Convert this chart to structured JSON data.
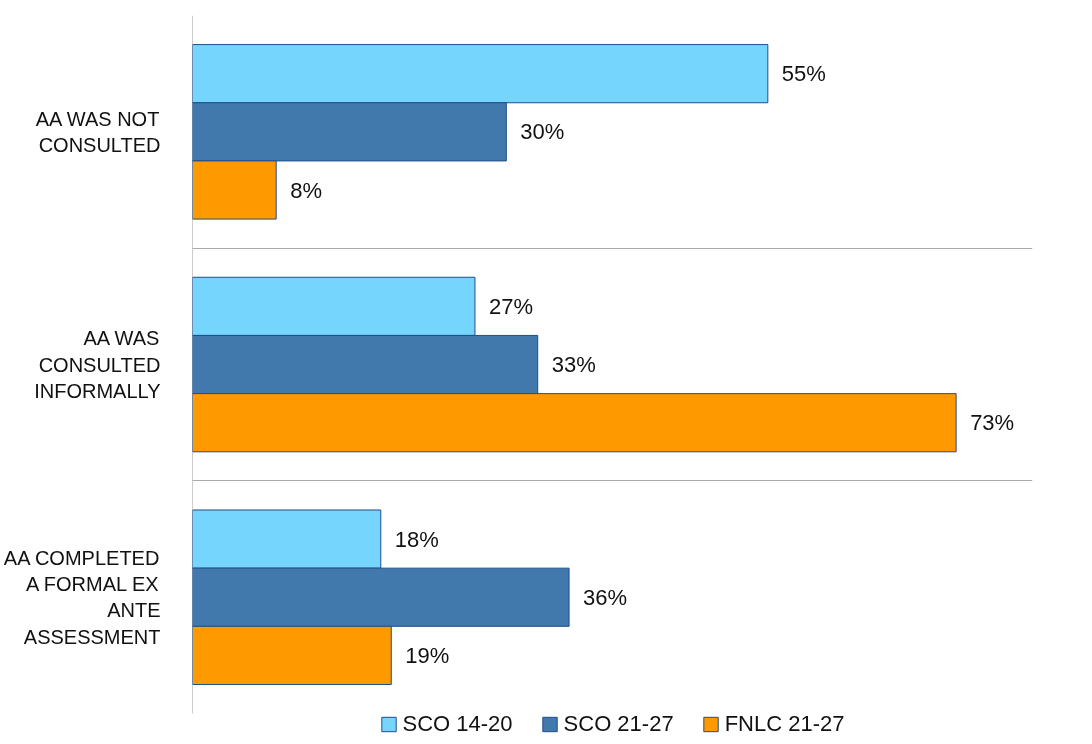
{
  "chart_data": {
    "type": "bar",
    "orientation": "horizontal",
    "categories": [
      "AA WAS NOT CONSULTED",
      "AA WAS CONSULTED INFORMALLY",
      "AA COMPLETED A FORMAL EX ANTE ASSESSMENT"
    ],
    "series": [
      {
        "name": "SCO 14-20",
        "color": "#75d5fd",
        "values": [
          55,
          27,
          18
        ],
        "value_labels": [
          "55%",
          "27%",
          "18%"
        ]
      },
      {
        "name": "SCO 21-27",
        "color": "#4279ad",
        "values": [
          30,
          33,
          36
        ],
        "value_labels": [
          "30%",
          "33%",
          "36%"
        ]
      },
      {
        "name": "FNLC 21-27",
        "color": "#ff9900",
        "values": [
          8,
          73,
          19
        ],
        "value_labels": [
          "8%",
          "73%",
          "19%"
        ]
      }
    ],
    "grid": "y",
    "legend": "bottom",
    "tick_labels": "y"
  }
}
